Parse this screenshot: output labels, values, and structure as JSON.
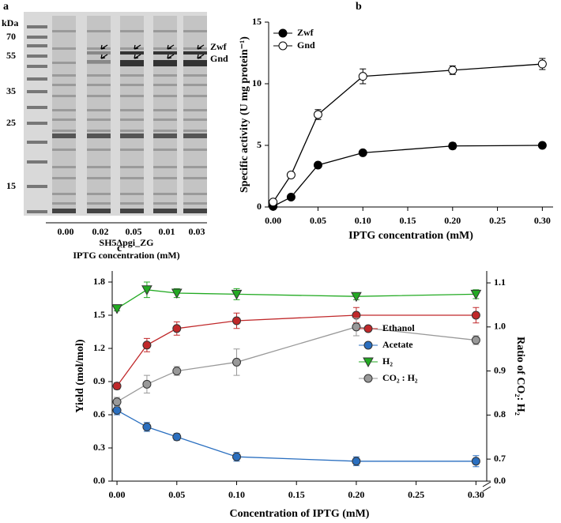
{
  "gel": {
    "panel_label": "a",
    "unit": "kDa",
    "markers": [
      "70",
      "55",
      "35",
      "25",
      "15"
    ],
    "band_labels": [
      "Zwf",
      "Gnd"
    ],
    "lanes": [
      "0.00",
      "0.02",
      "0.05",
      "0.01",
      "0.03"
    ],
    "strain": "SH5Δpgi_ZG",
    "xlabel": "IPTG concentration (mM)"
  },
  "chart_data": [
    {
      "type": "line",
      "panel_label": "b",
      "xlabel": "IPTG concentration (mM)",
      "ylabel": "Specific activity (U mg protein⁻¹)",
      "x": [
        0,
        0.02,
        0.05,
        0.1,
        0.2,
        0.3
      ],
      "series": [
        {
          "name": "Zwf",
          "color": "#000000",
          "marker": "circle",
          "marker_fill": "#000000",
          "values": [
            0.05,
            0.8,
            3.4,
            4.4,
            4.95,
            5.0
          ],
          "errors": [
            0.05,
            0.1,
            0.1,
            0.2,
            0.25,
            0.2
          ]
        },
        {
          "name": "Gnd",
          "color": "#000000",
          "marker": "circle",
          "marker_fill": "#ffffff",
          "values": [
            0.4,
            2.6,
            7.5,
            10.6,
            11.1,
            11.6
          ],
          "errors": [
            0.1,
            0.1,
            0.4,
            0.6,
            0.35,
            0.45
          ]
        }
      ],
      "xlim": [
        -0.005,
        0.312
      ],
      "xticks": [
        {
          "value": 0,
          "label": "0.00"
        },
        {
          "value": 0.05,
          "label": "0.05"
        },
        {
          "value": 0.1,
          "label": "0.10"
        },
        {
          "value": 0.15,
          "label": "0.15"
        },
        {
          "value": 0.2,
          "label": "0.20"
        },
        {
          "value": 0.25,
          "label": "0.25"
        },
        {
          "value": 0.3,
          "label": "0.30"
        }
      ],
      "ylim": [
        0,
        15
      ],
      "yticks": [
        0,
        5,
        10,
        15
      ],
      "legend": "upper left"
    },
    {
      "type": "line",
      "panel_label": "c",
      "xlabel": "Concentration of IPTG (mM)",
      "ylabel": "Yield (mol/mol)",
      "y2label": "Ratio of CO₂: H₂",
      "x": [
        0,
        0.025,
        0.05,
        0.1,
        0.2,
        0.3
      ],
      "series": [
        {
          "name": "Ethanol",
          "color": "#c0282a",
          "marker": "circle",
          "marker_fill": "#c0282a",
          "values": [
            0.86,
            1.23,
            1.38,
            1.45,
            1.5,
            1.5
          ],
          "errors": [
            0.03,
            0.06,
            0.06,
            0.07,
            0.07,
            0.07
          ]
        },
        {
          "name": "Acetate",
          "color": "#2a6fc0",
          "marker": "circle",
          "marker_fill": "#2a6fc0",
          "values": [
            0.64,
            0.49,
            0.4,
            0.22,
            0.18,
            0.18
          ],
          "errors": [
            0.04,
            0.04,
            0.03,
            0.04,
            0.04,
            0.05
          ]
        },
        {
          "name": "H₂",
          "color": "#22aa22",
          "marker": "triangle",
          "marker_fill": "#22aa22",
          "values": [
            1.56,
            1.73,
            1.7,
            1.69,
            1.67,
            1.69
          ],
          "errors": [
            0.02,
            0.07,
            0.04,
            0.05,
            0.03,
            0.04
          ]
        },
        {
          "name": "CO₂ : H₂",
          "color": "#999999",
          "marker": "circle",
          "marker_fill": "#999999",
          "axis": "y2",
          "values": [
            0.83,
            0.87,
            0.9,
            0.92,
            1.0,
            0.97
          ],
          "errors": [
            0.01,
            0.02,
            0.01,
            0.03,
            0.02,
            0.01
          ]
        }
      ],
      "xlim": [
        -0.004,
        0.309
      ],
      "xticks": [
        {
          "value": 0,
          "label": "0.00"
        },
        {
          "value": 0.05,
          "label": "0.05"
        },
        {
          "value": 0.1,
          "label": "0.10"
        },
        {
          "value": 0.15,
          "label": "0.15"
        },
        {
          "value": 0.2,
          "label": "0.20"
        },
        {
          "value": 0.25,
          "label": "0.25"
        },
        {
          "value": 0.3,
          "label": "0.30"
        }
      ],
      "ylim": [
        0,
        1.9
      ],
      "yticks": [
        {
          "value": 0,
          "label": "0.0"
        },
        {
          "value": 0.3,
          "label": "0.3"
        },
        {
          "value": 0.6,
          "label": "0.6"
        },
        {
          "value": 0.9,
          "label": "0.9"
        },
        {
          "value": 1.2,
          "label": "1.2"
        },
        {
          "value": 1.5,
          "label": "1.5"
        },
        {
          "value": 1.8,
          "label": "1.8"
        }
      ],
      "y2lim": [
        0.65,
        1.127
      ],
      "y2ticks": [
        {
          "value": 0,
          "label": "0.0"
        },
        {
          "value": 0.7,
          "label": "0.7"
        },
        {
          "value": 0.8,
          "label": "0.8"
        },
        {
          "value": 0.9,
          "label": "0.9"
        },
        {
          "value": 1.0,
          "label": "1.0"
        },
        {
          "value": 1.1,
          "label": "1.1"
        }
      ],
      "y2_break": true,
      "legend": "center right"
    }
  ]
}
